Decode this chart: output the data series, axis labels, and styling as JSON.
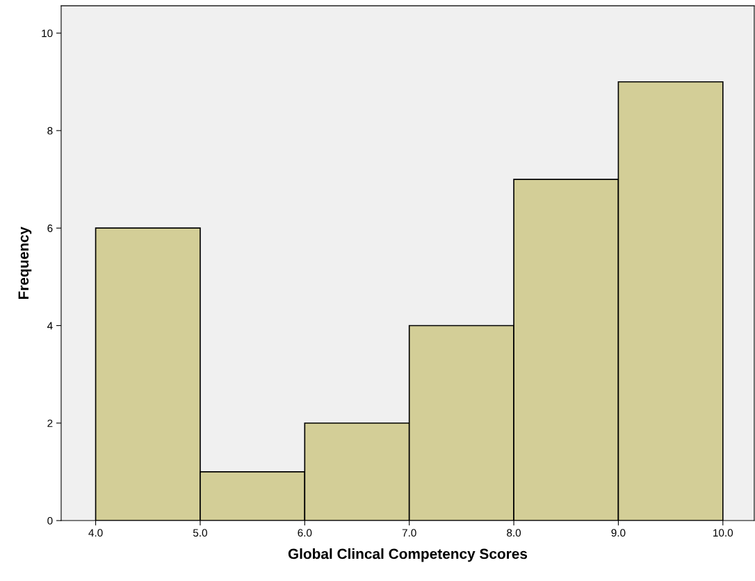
{
  "chart_data": {
    "type": "histogram",
    "xlabel": "Global Clincal Competency Scores",
    "ylabel": "Frequency",
    "bins": [
      4,
      5,
      6,
      7,
      8,
      9,
      10
    ],
    "values": [
      6,
      1,
      2,
      4,
      7,
      9
    ],
    "color": "#d3ce97",
    "xlim": [
      3.67,
      10.3
    ],
    "ylim": [
      0,
      10.56
    ],
    "xticks": [
      {
        "value": 4,
        "label": "4.0"
      },
      {
        "value": 5,
        "label": "5.0"
      },
      {
        "value": 6,
        "label": "6.0"
      },
      {
        "value": 7,
        "label": "7.0"
      },
      {
        "value": 8,
        "label": "8.0"
      },
      {
        "value": 9,
        "label": "9.0"
      },
      {
        "value": 10,
        "label": "10.0"
      }
    ],
    "yticks": [
      0,
      2,
      4,
      6,
      8,
      10
    ],
    "grid": false
  }
}
